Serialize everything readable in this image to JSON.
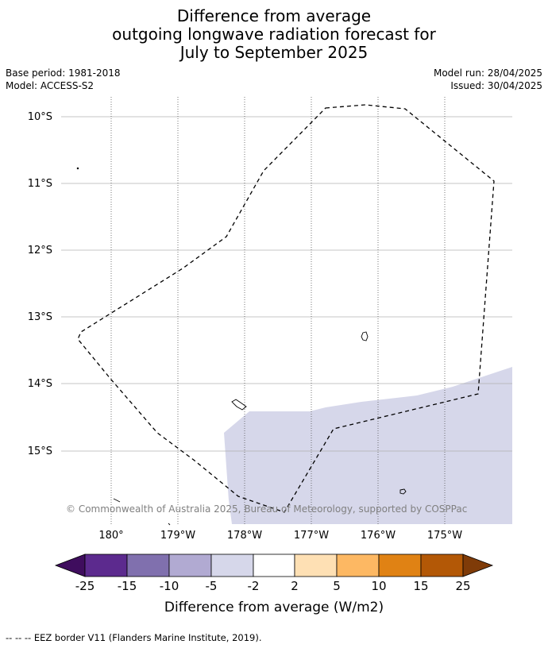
{
  "title": {
    "line1": "Difference from average",
    "line2": "outgoing longwave radiation forecast for",
    "line3": "July to September 2025"
  },
  "meta": {
    "base_period": "Base period: 1981-2018",
    "model": "Model: ACCESS-S2",
    "model_run": "Model run: 28/04/2025",
    "issued": "Issued: 30/04/2025"
  },
  "map": {
    "lat_labels": [
      "10°S",
      "11°S",
      "12°S",
      "13°S",
      "14°S",
      "15°S"
    ],
    "lon_labels": [
      "180°",
      "179°W",
      "178°W",
      "177°W",
      "176°W",
      "175°W"
    ],
    "copyright": "© Commonwealth of Australia 2025, Bureau of Meteorology, supported by COSPPac",
    "colors": {
      "shading_-5_-2": "#d6d7ea",
      "eez_line": "#000000",
      "grid": "#b0b0b0",
      "copyright": "#808080"
    }
  },
  "colorbar": {
    "label": "Difference from average (W/m2)",
    "ticks": [
      "-25",
      "-15",
      "-10",
      "-5",
      "-2",
      "2",
      "5",
      "10",
      "15",
      "25"
    ],
    "colors": [
      "#3f0d5e",
      "#5c2a8e",
      "#8070ae",
      "#b1aad2",
      "#d6d7ea",
      "#ffffff",
      "#fee0b4",
      "#fdb863",
      "#e08214",
      "#b35806",
      "#7f3b08"
    ]
  },
  "legend": {
    "eez": "--  --  -- EEZ border V11 (Flanders Marine Institute, 2019)."
  }
}
